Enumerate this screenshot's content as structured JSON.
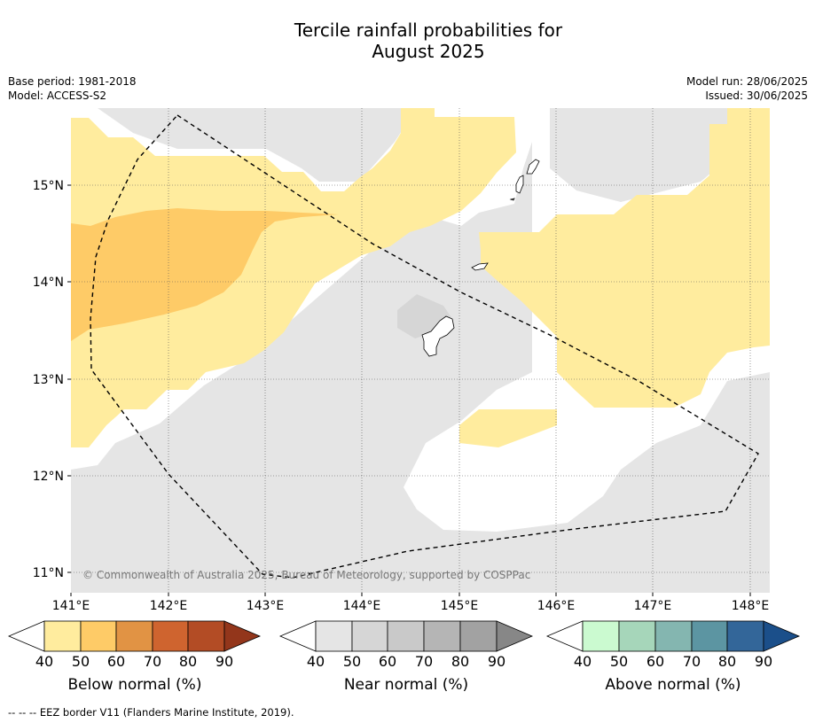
{
  "title_line1": "Tercile rainfall probabilities for",
  "title_line2": "August 2025",
  "meta_left": [
    "Base period: 1981-2018",
    "Model: ACCESS-S2"
  ],
  "meta_right": [
    "Model run: 28/06/2025",
    "Issued: 30/06/2025"
  ],
  "map": {
    "lat_labels": [
      "15°N",
      "14°N",
      "13°N",
      "12°N",
      "11°N"
    ],
    "lon_labels": [
      "141°E",
      "142°E",
      "143°E",
      "144°E",
      "145°E",
      "146°E",
      "147°E",
      "148°E"
    ],
    "copyright": "© Commonwealth of Australia 2025, Bureau of Meteorology, supported by COSPPac",
    "colors": {
      "near_normal_40": "#e5e5e5",
      "near_normal_50": "#d6d6d6",
      "below_40": "#ffec9e",
      "below_50": "#fecb67",
      "no_signal": "#ffffff"
    }
  },
  "colorbars": [
    {
      "label": "Below normal (%)",
      "ticks": [
        "40",
        "50",
        "60",
        "70",
        "80",
        "90"
      ],
      "colors": [
        "#ffec9e",
        "#fecb67",
        "#e19344",
        "#cf642f",
        "#b34c25",
        "#93361b"
      ]
    },
    {
      "label": "Near normal (%)",
      "ticks": [
        "40",
        "50",
        "60",
        "70",
        "80",
        "90"
      ],
      "colors": [
        "#e5e5e5",
        "#d6d6d6",
        "#c9c9c9",
        "#b5b5b5",
        "#a2a2a2",
        "#878787"
      ]
    },
    {
      "label": "Above normal (%)",
      "ticks": [
        "40",
        "50",
        "60",
        "70",
        "80",
        "90"
      ],
      "colors": [
        "#cbfad0",
        "#a6d6ba",
        "#84b6b0",
        "#5c95a2",
        "#336699",
        "#1b4f8a"
      ]
    }
  ],
  "footnote": "--  --  -- EEZ border V11 (Flanders Marine Institute, 2019)."
}
